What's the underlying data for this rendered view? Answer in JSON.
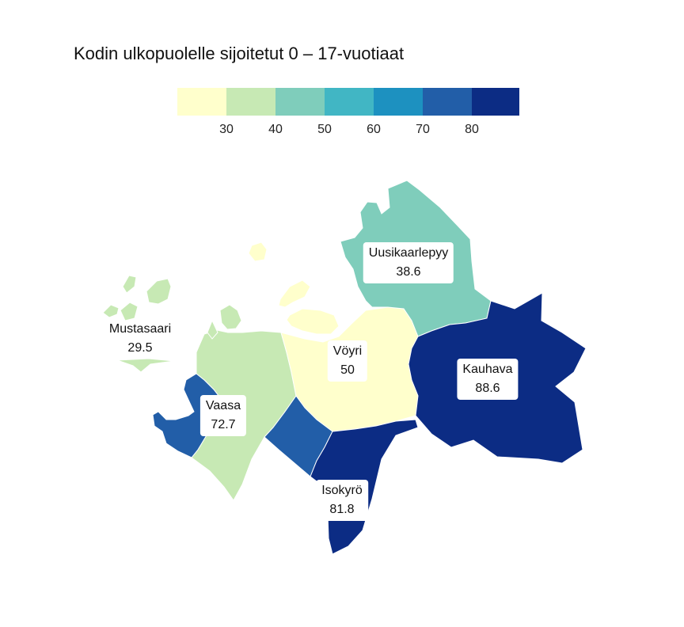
{
  "title": "Kodin ulkopuolelle sijoitetut 0 – 17-vuotiaat",
  "legend": {
    "colors": [
      "#ffffcc",
      "#c7e9b4",
      "#7fcdbb",
      "#41b6c4",
      "#1d91c0",
      "#225ea8",
      "#0c2c84"
    ],
    "ticks": [
      "30",
      "40",
      "50",
      "60",
      "70",
      "80"
    ]
  },
  "regions": [
    {
      "name": "Uusikaarlepyy",
      "value": "38.6",
      "color": "#c7e9b4"
    },
    {
      "name": "Mustasaari",
      "value": "29.5",
      "color": "#ffffcc"
    },
    {
      "name": "Vöyri",
      "value": "50",
      "color": "#7fcdbb"
    },
    {
      "name": "Kauhava",
      "value": "88.6",
      "color": "#0c2c84"
    },
    {
      "name": "Vaasa",
      "value": "72.7",
      "color": "#225ea8"
    },
    {
      "name": "Isokyrö",
      "value": "81.8",
      "color": "#0c2c84"
    }
  ],
  "chart_data": {
    "type": "choropleth",
    "title": "Kodin ulkopuolelle sijoitetut 0 – 17-vuotiaat",
    "legend_breaks": [
      30,
      40,
      50,
      60,
      70,
      80
    ],
    "legend_placement": "top",
    "regions": [
      {
        "name": "Uusikaarlepyy",
        "value": 38.6
      },
      {
        "name": "Mustasaari",
        "value": 29.5
      },
      {
        "name": "Vöyri",
        "value": 50
      },
      {
        "name": "Kauhava",
        "value": 88.6
      },
      {
        "name": "Vaasa",
        "value": 72.7
      },
      {
        "name": "Isokyrö",
        "value": 81.8
      }
    ]
  }
}
